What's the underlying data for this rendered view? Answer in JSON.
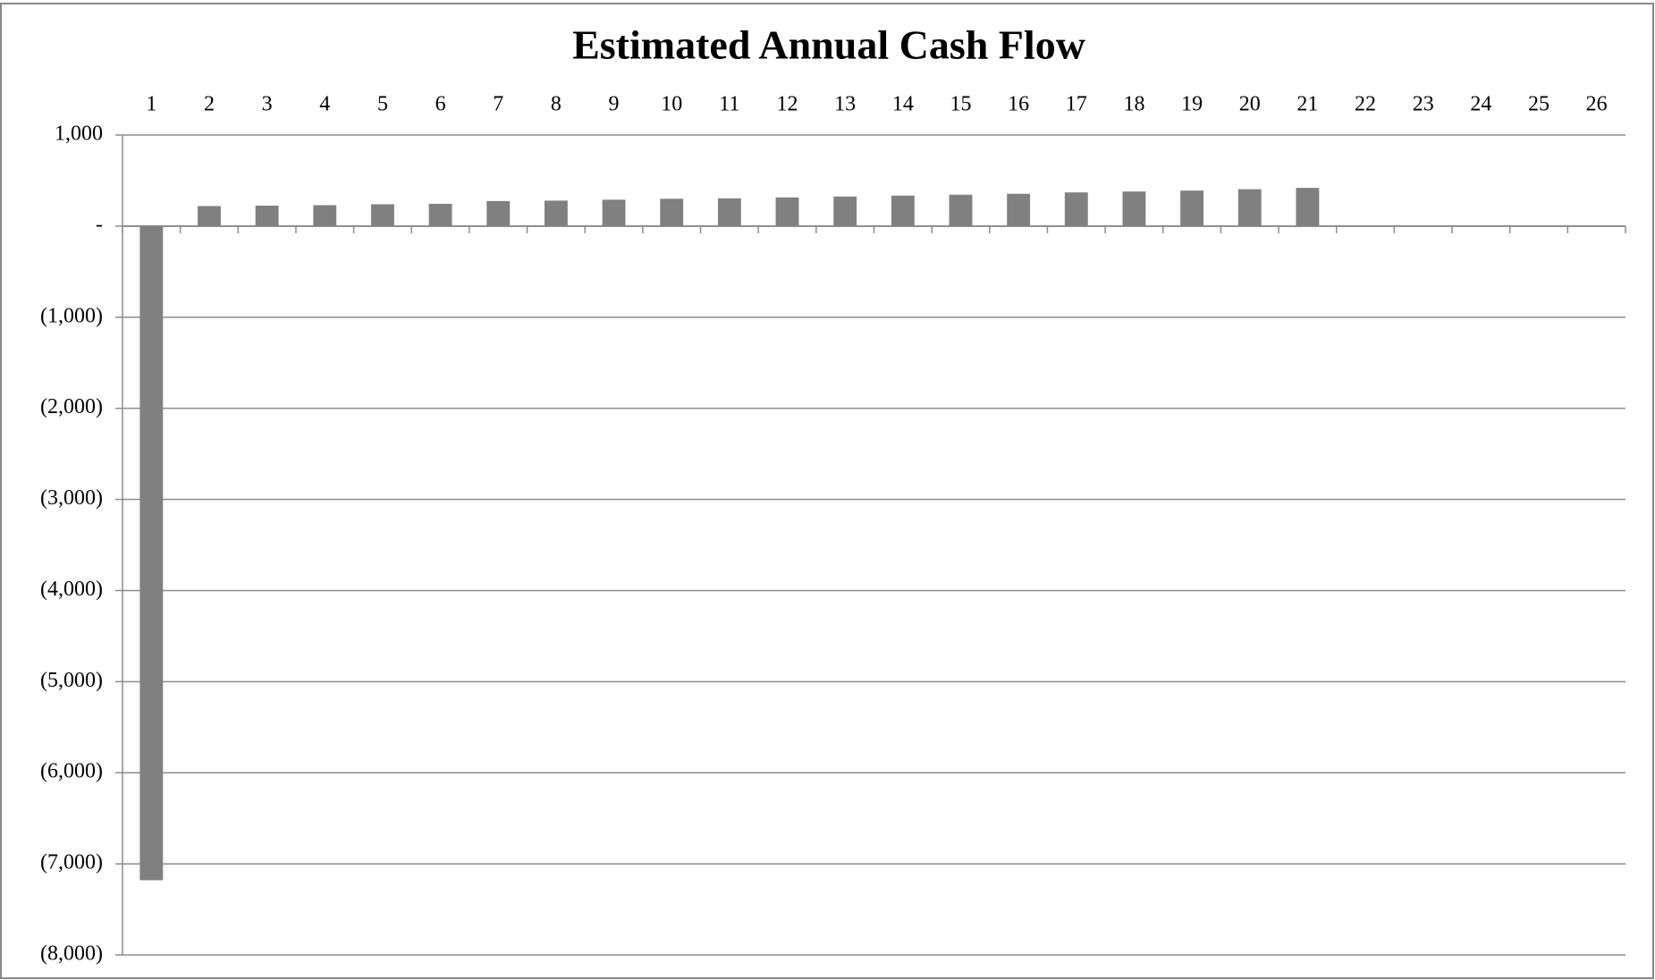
{
  "chart_data": {
    "type": "bar",
    "title": "Estimated Annual Cash Flow",
    "categories": [
      "1",
      "2",
      "3",
      "4",
      "5",
      "6",
      "7",
      "8",
      "9",
      "10",
      "11",
      "12",
      "13",
      "14",
      "15",
      "16",
      "17",
      "18",
      "19",
      "20",
      "21",
      "22",
      "23",
      "24",
      "25",
      "26"
    ],
    "values": [
      -7180,
      220,
      225,
      230,
      240,
      245,
      275,
      280,
      290,
      300,
      305,
      315,
      325,
      335,
      345,
      355,
      370,
      380,
      390,
      405,
      420,
      0,
      0,
      0,
      0,
      0
    ],
    "color": "#808080",
    "ylim": [
      -8000,
      1000
    ],
    "yticks": [
      {
        "value": 1000,
        "label": "1,000"
      },
      {
        "value": 0,
        "label": "-"
      },
      {
        "value": -1000,
        "label": "(1,000)"
      },
      {
        "value": -2000,
        "label": "(2,000)"
      },
      {
        "value": -3000,
        "label": "(3,000)"
      },
      {
        "value": -4000,
        "label": "(4,000)"
      },
      {
        "value": -5000,
        "label": "(5,000)"
      },
      {
        "value": -6000,
        "label": "(6,000)"
      },
      {
        "value": -7000,
        "label": "(7,000)"
      },
      {
        "value": -8000,
        "label": "(8,000)"
      }
    ],
    "grid": true
  }
}
